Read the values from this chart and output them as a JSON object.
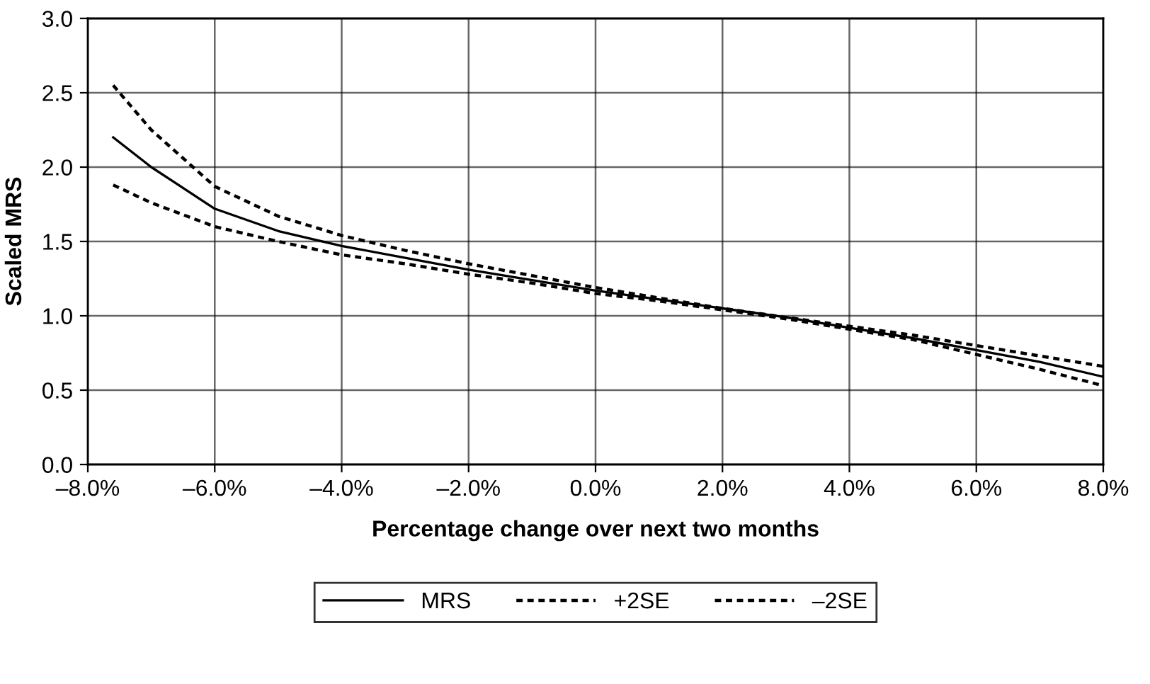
{
  "chart_data": {
    "type": "line",
    "xlabel": "Percentage change over next two months",
    "ylabel": "Scaled MRS",
    "x": [
      -7.6,
      -7,
      -6,
      -5,
      -4,
      -3,
      -2,
      -1,
      0,
      1,
      2,
      3,
      4,
      5,
      6,
      7,
      8
    ],
    "series": [
      {
        "name": "MRS",
        "color": "#000000",
        "line_style": "solid",
        "values": [
          2.2,
          2.0,
          1.72,
          1.57,
          1.47,
          1.39,
          1.31,
          1.24,
          1.17,
          1.11,
          1.05,
          0.99,
          0.92,
          0.85,
          0.77,
          0.69,
          0.59
        ]
      },
      {
        "name": "+2SE",
        "color": "#000000",
        "line_style": "dotted",
        "values": [
          2.55,
          2.25,
          1.87,
          1.67,
          1.54,
          1.44,
          1.35,
          1.27,
          1.19,
          1.12,
          1.05,
          0.99,
          0.93,
          0.87,
          0.8,
          0.73,
          0.66
        ]
      },
      {
        "name": "–2SE",
        "color": "#000000",
        "line_style": "dotted",
        "values": [
          1.88,
          1.76,
          1.6,
          1.5,
          1.41,
          1.35,
          1.28,
          1.22,
          1.15,
          1.1,
          1.04,
          0.98,
          0.91,
          0.84,
          0.74,
          0.64,
          0.53
        ]
      }
    ],
    "xlim": [
      -8,
      8
    ],
    "xticks": [
      {
        "value": -8,
        "label": "–8.0%"
      },
      {
        "value": -6,
        "label": "–6.0%"
      },
      {
        "value": -4,
        "label": "–4.0%"
      },
      {
        "value": -2,
        "label": "–2.0%"
      },
      {
        "value": 0,
        "label": "0.0%"
      },
      {
        "value": 2,
        "label": "2.0%"
      },
      {
        "value": 4,
        "label": "4.0%"
      },
      {
        "value": 6,
        "label": "6.0%"
      },
      {
        "value": 8,
        "label": "8.0%"
      }
    ],
    "ylim": [
      0,
      3
    ],
    "yticks": [
      {
        "value": 0,
        "label": "0.0"
      },
      {
        "value": 0.5,
        "label": "0.5"
      },
      {
        "value": 1,
        "label": "1.0"
      },
      {
        "value": 1.5,
        "label": "1.5"
      },
      {
        "value": 2,
        "label": "2.0"
      },
      {
        "value": 2.5,
        "label": "2.5"
      },
      {
        "value": 3,
        "label": "3.0"
      }
    ],
    "grid": true,
    "legend": "bottom",
    "marker": "none"
  }
}
